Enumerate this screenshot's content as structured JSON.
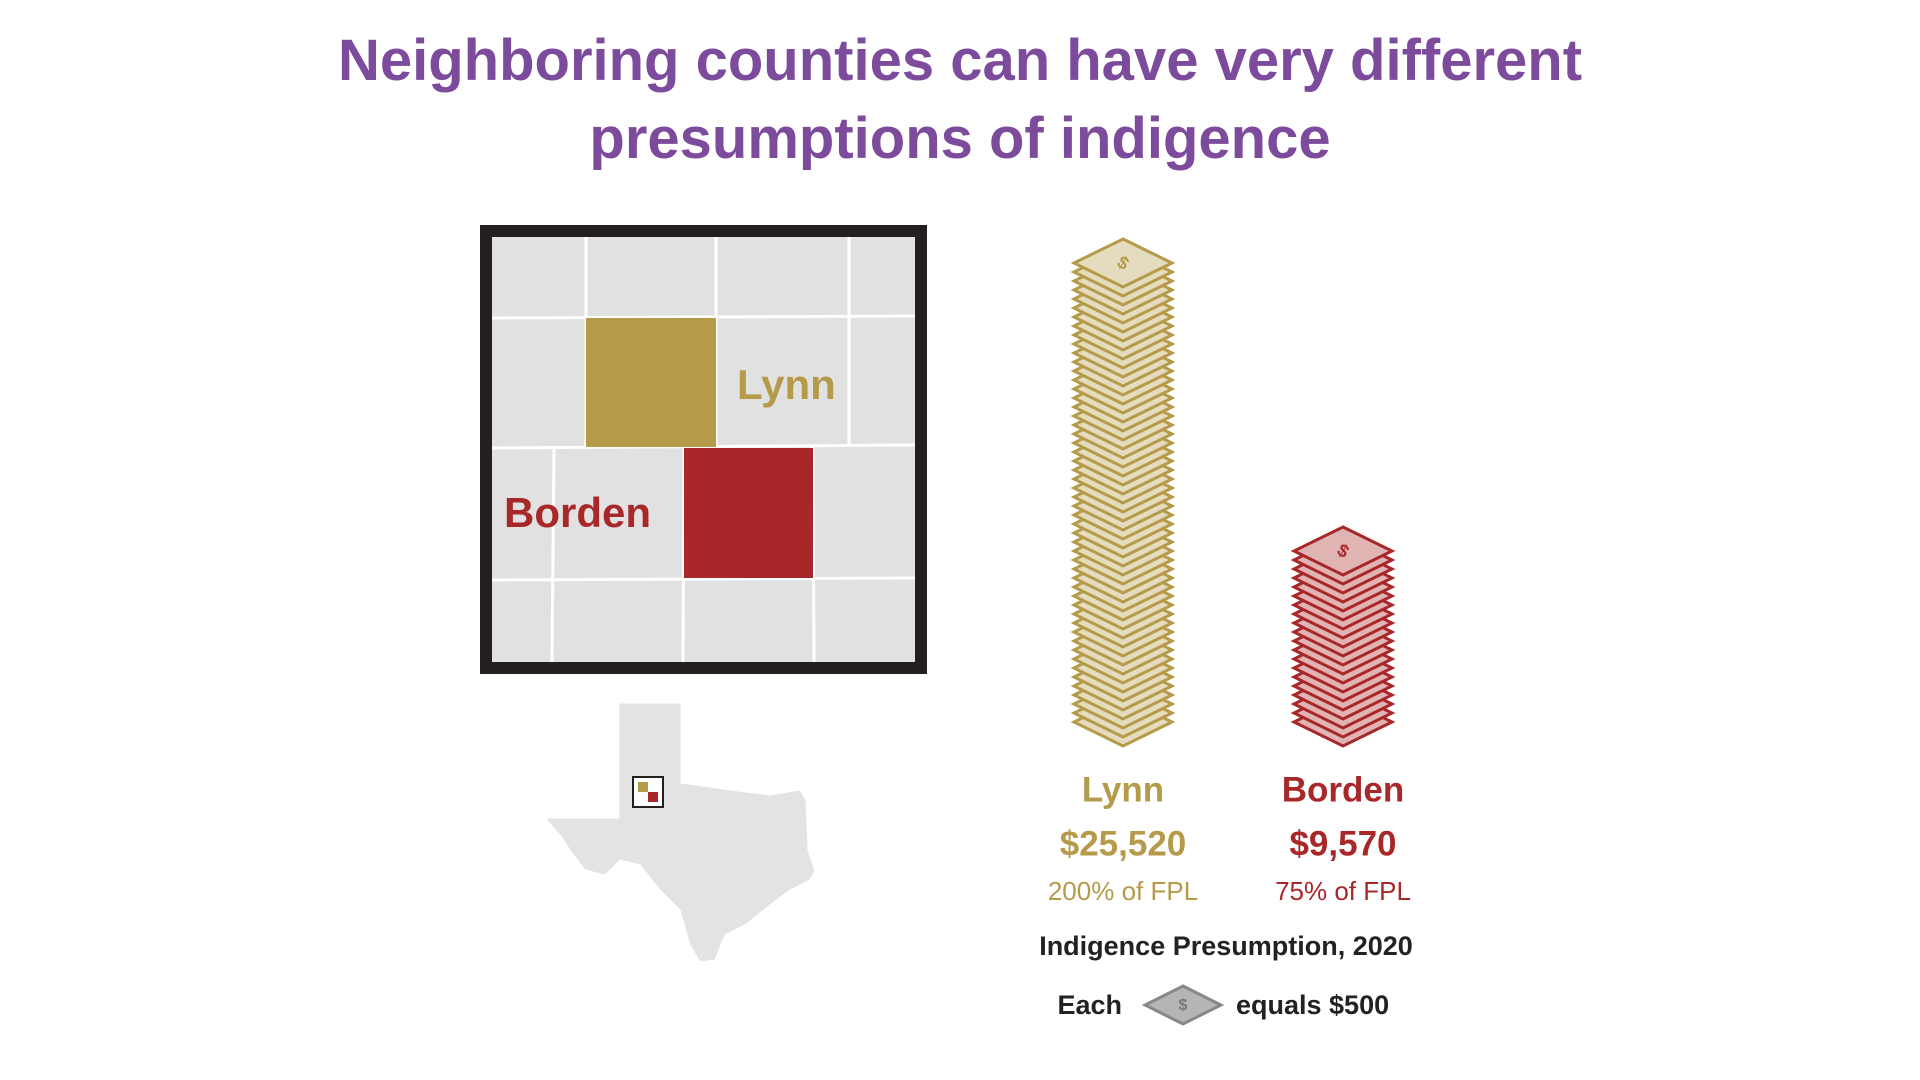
{
  "chart_data": {
    "type": "pictograph",
    "title": "Neighboring counties can have very different presumptions of indigence",
    "categories": [
      "Lynn",
      "Borden"
    ],
    "values": [
      25520,
      9570
    ],
    "value_labels": [
      "$25,520",
      "$9,570"
    ],
    "fpl_labels": [
      "200% of FPL",
      "75% of FPL"
    ],
    "colors": [
      "#b59a4a",
      "#a8282a"
    ],
    "caption": "Indigence Presumption, 2020",
    "legend": {
      "prefix": "Each",
      "suffix": "equals $500",
      "unit": 500
    }
  }
}
